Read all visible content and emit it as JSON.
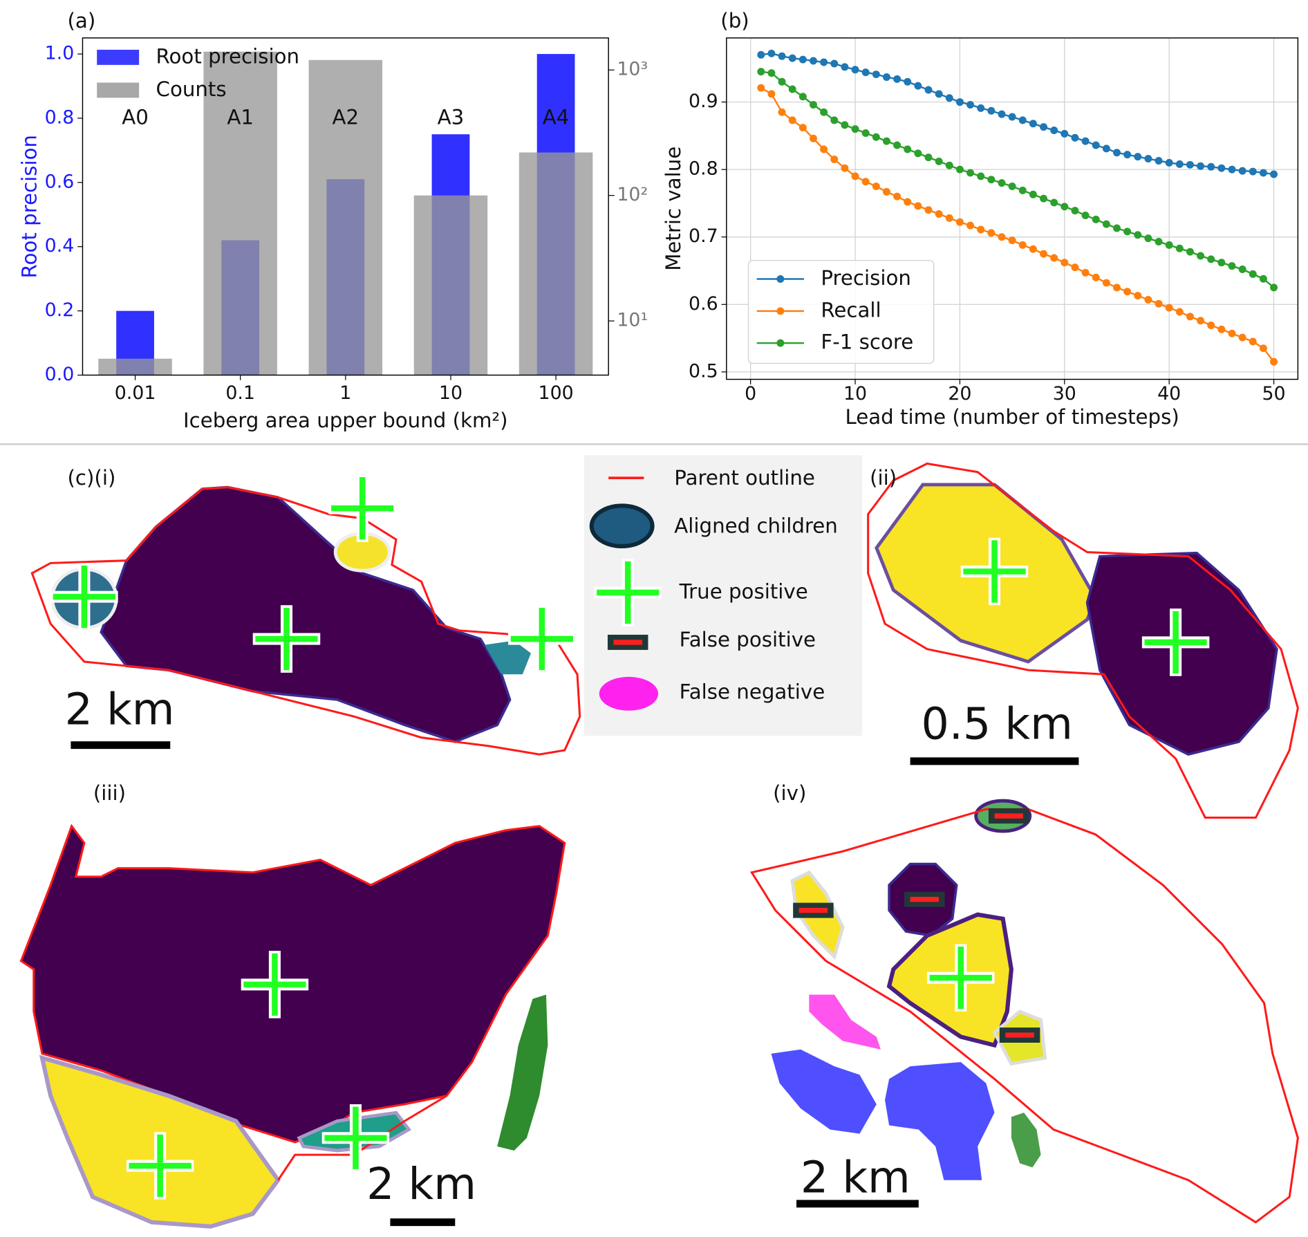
{
  "chart_data": [
    {
      "type": "bar",
      "panel_label": "(a)",
      "xlabel": "Iceberg area upper bound (km²)",
      "ylabel": "Root precision",
      "categories": [
        "0.01",
        "0.1",
        "1",
        "10",
        "100"
      ],
      "annotations": [
        "A0",
        "A1",
        "A2",
        "A3",
        "A4"
      ],
      "series": [
        {
          "name": "Root precision",
          "color": "#1a1aff",
          "values": [
            0.2,
            0.42,
            0.61,
            0.75,
            1.0
          ]
        },
        {
          "name": "Counts",
          "color": "#999999",
          "axis": "y2",
          "values": [
            5,
            1400,
            1200,
            100,
            220
          ]
        }
      ],
      "ylim": [
        0,
        1.05
      ],
      "yticks": [
        {
          "value": 0,
          "label": "0.0"
        },
        0.2,
        0.4,
        0.6,
        0.8,
        {
          "value": 1,
          "label": "1.0"
        }
      ],
      "y2lim": [
        3.7,
        1800
      ],
      "y2scale": "log",
      "y2ticks": [
        {
          "value": 10,
          "label": "10¹"
        },
        {
          "value": 100,
          "label": "10²"
        },
        {
          "value": 1000,
          "label": "10³"
        }
      ],
      "legend": "upper left"
    },
    {
      "type": "line",
      "panel_label": "(b)",
      "xlabel": "Lead time (number of timesteps)",
      "ylabel": "Metric value",
      "x": [
        1,
        2,
        3,
        4,
        5,
        6,
        7,
        8,
        9,
        10,
        11,
        12,
        13,
        14,
        15,
        16,
        17,
        18,
        19,
        20,
        21,
        22,
        23,
        24,
        25,
        26,
        27,
        28,
        29,
        30,
        31,
        32,
        33,
        34,
        35,
        36,
        37,
        38,
        39,
        40,
        41,
        42,
        43,
        44,
        45,
        46,
        47,
        48,
        49,
        50
      ],
      "series": [
        {
          "name": "Precision",
          "color": "#1f77b4",
          "values": [
            0.97,
            0.972,
            0.968,
            0.965,
            0.963,
            0.961,
            0.959,
            0.957,
            0.952,
            0.948,
            0.944,
            0.941,
            0.937,
            0.934,
            0.93,
            0.924,
            0.918,
            0.912,
            0.906,
            0.9,
            0.896,
            0.891,
            0.887,
            0.882,
            0.878,
            0.873,
            0.868,
            0.863,
            0.858,
            0.853,
            0.847,
            0.842,
            0.836,
            0.831,
            0.825,
            0.822,
            0.819,
            0.816,
            0.813,
            0.81,
            0.808,
            0.807,
            0.805,
            0.804,
            0.802,
            0.8,
            0.798,
            0.797,
            0.795,
            0.793
          ]
        },
        {
          "name": "Recall",
          "color": "#ff7f0e",
          "values": [
            0.921,
            0.912,
            0.885,
            0.873,
            0.862,
            0.846,
            0.83,
            0.815,
            0.802,
            0.79,
            0.782,
            0.775,
            0.767,
            0.76,
            0.752,
            0.746,
            0.74,
            0.734,
            0.728,
            0.722,
            0.717,
            0.711,
            0.706,
            0.7,
            0.695,
            0.688,
            0.682,
            0.675,
            0.669,
            0.662,
            0.655,
            0.647,
            0.64,
            0.632,
            0.625,
            0.619,
            0.613,
            0.607,
            0.601,
            0.595,
            0.589,
            0.582,
            0.576,
            0.569,
            0.563,
            0.557,
            0.551,
            0.545,
            0.535,
            0.515
          ]
        },
        {
          "name": "F-1 score",
          "color": "#2ca02c",
          "values": [
            0.945,
            0.943,
            0.93,
            0.919,
            0.908,
            0.896,
            0.885,
            0.873,
            0.866,
            0.86,
            0.854,
            0.848,
            0.842,
            0.836,
            0.83,
            0.824,
            0.818,
            0.812,
            0.806,
            0.8,
            0.795,
            0.79,
            0.785,
            0.78,
            0.775,
            0.769,
            0.763,
            0.757,
            0.751,
            0.745,
            0.739,
            0.732,
            0.726,
            0.719,
            0.713,
            0.708,
            0.703,
            0.698,
            0.693,
            0.688,
            0.683,
            0.678,
            0.672,
            0.667,
            0.662,
            0.657,
            0.652,
            0.645,
            0.638,
            0.625
          ]
        }
      ],
      "xlim": [
        -2.3,
        52.3
      ],
      "xticks": [
        0,
        10,
        20,
        30,
        40,
        50
      ],
      "ylim": [
        0.489,
        0.995
      ],
      "yticks": [
        0.5,
        0.6,
        0.7,
        0.8,
        0.9
      ],
      "grid": true,
      "legend": "lower left"
    }
  ],
  "panel_c": {
    "labels": [
      "(c)(i)",
      "(ii)",
      "(iii)",
      "(iv)"
    ],
    "legend": [
      "Parent outline",
      "Aligned children",
      "True positive",
      "False positive",
      "False negative"
    ],
    "scale_bars": [
      "2 km",
      "0.5 km",
      "2 km",
      "2 km"
    ]
  }
}
